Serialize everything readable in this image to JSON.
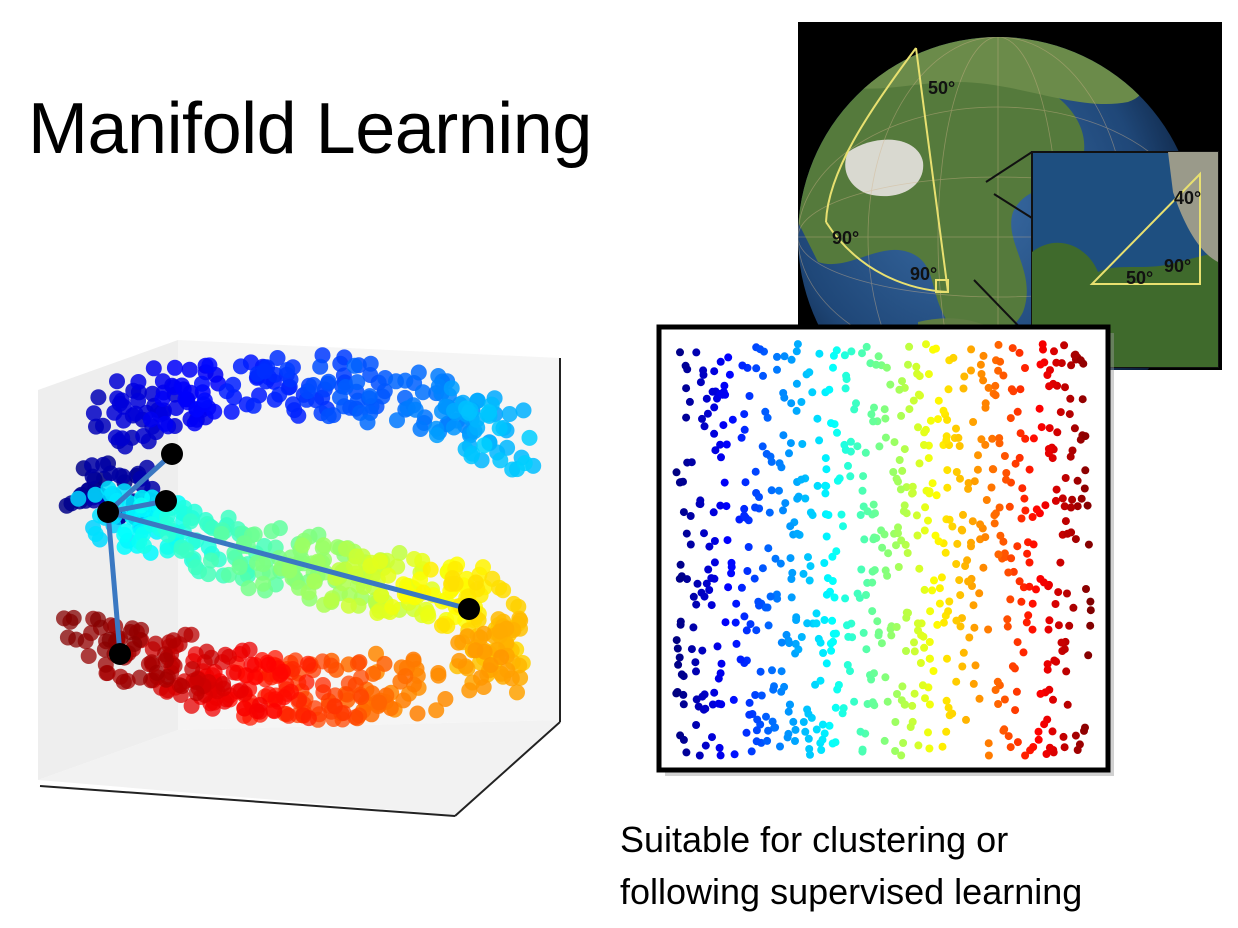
{
  "slide": {
    "title": "Manifold Learning",
    "caption_line1": "Suitable for clustering or",
    "caption_line2": "following supervised learning"
  },
  "globe": {
    "angle_top": "50°",
    "angle_left": "90°",
    "angle_bottom": "90°",
    "inset_angle_top": "40°",
    "inset_angle_left": "50°",
    "inset_angle_right": "90°"
  },
  "colors": {
    "graph_edges": "#3a78c2",
    "graph_nodes": "#000000",
    "colormap": "jet"
  }
}
